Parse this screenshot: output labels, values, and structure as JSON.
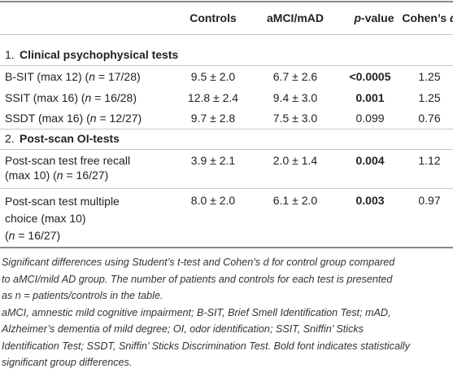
{
  "table": {
    "header": [
      "Controls",
      "aMCI/mAD",
      [
        "p",
        "-value"
      ],
      [
        "Cohen’s ",
        "d"
      ]
    ],
    "sections": [
      {
        "number": "1.",
        "title": "Clinical psychophysical tests",
        "rows": [
          {
            "label": [
              "B-SIT (max 12) (",
              "n",
              " = 17/28)"
            ],
            "cells": [
              "9.5 ± 2.0",
              "6.7 ± 2.6",
              "<0.0005",
              "1.25"
            ]
          },
          {
            "label": [
              "SSIT (max 16) (",
              "n",
              " = 16/28)"
            ],
            "cells": [
              "12.8 ± 2.4",
              "9.4 ± 3.0",
              "0.001",
              "1.25"
            ]
          },
          {
            "label": [
              "SSDT (max 16) (",
              "n",
              " = 12/27)"
            ],
            "cells": [
              "9.7 ± 2.8",
              "7.5 ± 3.0",
              "0.099",
              "0.76"
            ]
          }
        ]
      },
      {
        "number": "2.",
        "title": "Post-scan OI-tests",
        "rows": [
          {
            "label": [
              "Post-scan test free recall",
              "(max 10) (",
              "n",
              " = 16/27)"
            ],
            "cells": [
              "3.9 ± 2.1",
              "2.0 ± 1.4",
              "0.004",
              "1.12"
            ]
          },
          {
            "label": [
              "Post-scan test multiple",
              "choice (max 10)",
              "(",
              "n",
              " = 16/27)"
            ],
            "cells": [
              "8.0 ± 2.0",
              "6.1 ± 2.0",
              "0.003",
              "0.97"
            ]
          }
        ]
      }
    ],
    "footnote": [
      "Significant differences using Student’s t-test and Cohen’s d for control group compared",
      "to aMCI/mild AD group. The number of patients and controls for each test is presented",
      "as n = patients/controls in the table.",
      "aMCI, amnestic mild cognitive impairment; B-SIT, Brief Smell Identification Test; mAD,",
      "Alzheimer’s dementia of mild degree; OI, odor identification; SSIT, Sniffin’ Sticks",
      "Identification Test; SSDT, Sniffin’ Sticks Discrimination Test. Bold font indicates statistically",
      "significant group differences."
    ]
  }
}
